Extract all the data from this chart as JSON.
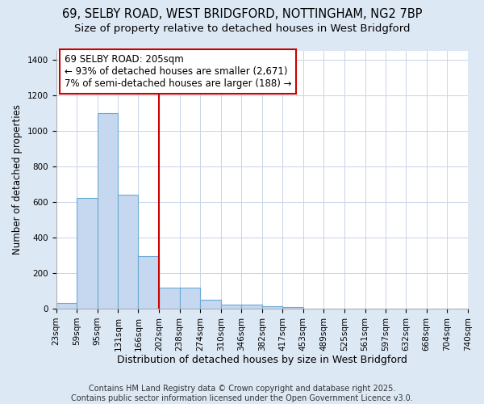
{
  "title_line1": "69, SELBY ROAD, WEST BRIDGFORD, NOTTINGHAM, NG2 7BP",
  "title_line2": "Size of property relative to detached houses in West Bridgford",
  "bin_edges": [
    23,
    59,
    95,
    131,
    166,
    202,
    238,
    274,
    310,
    346,
    382,
    417,
    453,
    489,
    525,
    561,
    597,
    632,
    668,
    704,
    740
  ],
  "bar_heights": [
    30,
    620,
    1100,
    640,
    295,
    120,
    120,
    50,
    25,
    25,
    15,
    10,
    0,
    0,
    0,
    0,
    0,
    0,
    0,
    0
  ],
  "bar_color": "#c5d8f0",
  "bar_edgecolor": "#6aaad4",
  "vline_x": 202,
  "vline_color": "#cc0000",
  "vline_lw": 1.5,
  "annotation_text": "69 SELBY ROAD: 205sqm\n← 93% of detached houses are smaller (2,671)\n7% of semi-detached houses are larger (188) →",
  "ylabel": "Number of detached properties",
  "xlabel": "Distribution of detached houses by size in West Bridgford",
  "ylim": [
    0,
    1450
  ],
  "yticks": [
    0,
    200,
    400,
    600,
    800,
    1000,
    1200,
    1400
  ],
  "axes_bg": "#ffffff",
  "fig_bg": "#dde8f5",
  "grid_color": "#c8d4e8",
  "footer_line1": "Contains HM Land Registry data © Crown copyright and database right 2025.",
  "footer_line2": "Contains public sector information licensed under the Open Government Licence v3.0.",
  "title_fontsize": 10.5,
  "subtitle_fontsize": 9.5,
  "xlabel_fontsize": 9,
  "ylabel_fontsize": 8.5,
  "tick_fontsize": 7.5,
  "annotation_fontsize": 8.5,
  "footer_fontsize": 7
}
